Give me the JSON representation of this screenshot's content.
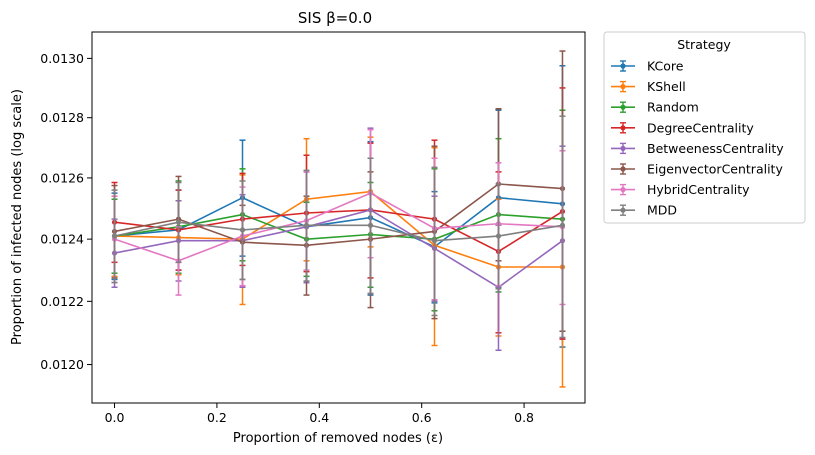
{
  "chart_data": {
    "type": "line",
    "title": "SIS β=0.0",
    "xlabel": "Proportion of removed nodes (ε)",
    "ylabel": "Proportion of infected nodes (log scale)",
    "xlim": [
      -0.044,
      0.919
    ],
    "ylim": [
      0.01188,
      0.01309
    ],
    "y_scale": "log",
    "x_ticks": [
      0.0,
      0.2,
      0.4,
      0.6,
      0.8
    ],
    "x_tick_labels": [
      "0.0",
      "0.2",
      "0.4",
      "0.6",
      "0.8"
    ],
    "y_ticks": [
      0.012,
      0.0122,
      0.0124,
      0.0126,
      0.0128,
      0.013
    ],
    "y_tick_labels": [
      "0.0120",
      "0.0122",
      "0.0124",
      "0.0126",
      "0.0128",
      "0.0130"
    ],
    "grid": false,
    "legend": {
      "title": "Strategy",
      "placement": "outside-right"
    },
    "x": [
      0.0,
      0.125,
      0.25,
      0.375,
      0.5,
      0.625,
      0.75,
      0.875
    ],
    "series": [
      {
        "name": "KCore",
        "color": "#1f77b4",
        "values": [
          0.01241,
          0.01243,
          0.012535,
          0.01244,
          0.01247,
          0.012375,
          0.012535,
          0.012515
        ],
        "errors": [
          0.00014,
          0.00013,
          0.00019,
          0.00018,
          0.00025,
          0.00018,
          0.00029,
          0.00046
        ]
      },
      {
        "name": "KShell",
        "color": "#ff7f0e",
        "values": [
          0.01241,
          0.012405,
          0.0124,
          0.01253,
          0.012555,
          0.01238,
          0.01231,
          0.01231
        ],
        "errors": [
          0.00013,
          0.00012,
          0.00021,
          0.0002,
          0.00018,
          0.00032,
          0.00022,
          0.00038
        ]
      },
      {
        "name": "Random",
        "color": "#2ca02c",
        "values": [
          0.01241,
          0.01244,
          0.01248,
          0.0124,
          0.012415,
          0.0124,
          0.01248,
          0.012465
        ],
        "errors": [
          0.00012,
          0.00015,
          0.00015,
          0.00012,
          0.00017,
          0.00023,
          0.00025,
          0.00036
        ]
      },
      {
        "name": "DegreeCentrality",
        "color": "#d62728",
        "values": [
          0.012455,
          0.01243,
          0.012465,
          0.012485,
          0.012495,
          0.012465,
          0.01236,
          0.01249
        ],
        "errors": [
          0.00013,
          0.00013,
          0.00015,
          0.00019,
          0.00022,
          0.00026,
          0.00026,
          0.00041
        ]
      },
      {
        "name": "BetweenessCentrality",
        "color": "#9467bd",
        "values": [
          0.012355,
          0.012395,
          0.012395,
          0.01244,
          0.012495,
          0.01237,
          0.012245,
          0.012395
        ],
        "errors": [
          0.00011,
          0.00013,
          0.00015,
          0.00018,
          0.00027,
          0.00017,
          0.0002,
          0.00031
        ]
      },
      {
        "name": "EigenvectorCentrality",
        "color": "#8c564b",
        "values": [
          0.012425,
          0.012465,
          0.01239,
          0.01238,
          0.0124,
          0.012425,
          0.01258,
          0.012565
        ],
        "errors": [
          0.00015,
          0.00014,
          0.00012,
          0.00016,
          0.00022,
          0.00028,
          0.00025,
          0.00046
        ]
      },
      {
        "name": "HybridCentrality",
        "color": "#e377c2",
        "values": [
          0.0124,
          0.01233,
          0.01241,
          0.01246,
          0.01255,
          0.012435,
          0.01245,
          0.01244
        ],
        "errors": [
          0.00014,
          0.00011,
          0.00016,
          0.00016,
          0.00021,
          0.00023,
          0.0002,
          0.00025
        ]
      },
      {
        "name": "MDD",
        "color": "#7f7f7f",
        "values": [
          0.01241,
          0.012455,
          0.01243,
          0.012445,
          0.012445,
          0.012395,
          0.01241,
          0.012445
        ],
        "errors": [
          0.00015,
          0.00013,
          0.00016,
          0.00018,
          0.00022,
          0.00024,
          0.00017,
          0.00036
        ]
      }
    ]
  }
}
